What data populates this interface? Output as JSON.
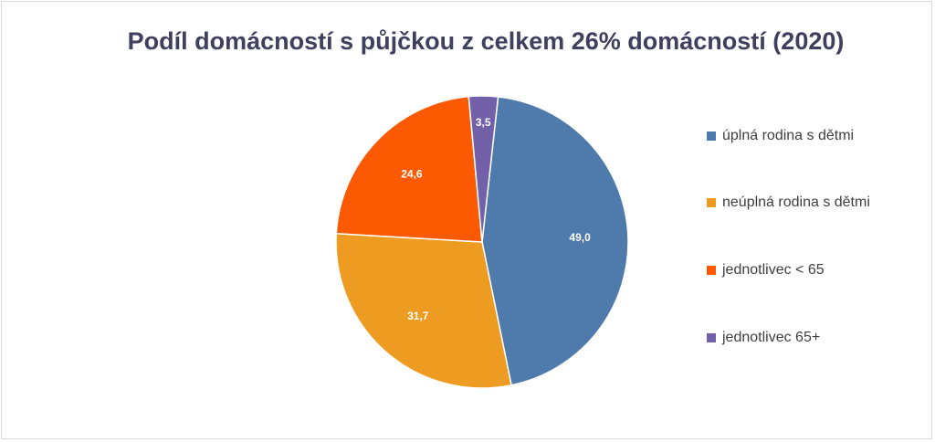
{
  "chart_data": {
    "type": "pie",
    "title": "Podíl domácností s půjčkou z celkem 26% domácností (2020)",
    "legend_position": "right",
    "slices": [
      {
        "name": "úplná rodina s dětmi",
        "value": 49.0,
        "label": "49,0",
        "color": "#4e7bab"
      },
      {
        "name": "neúplná rodina s dětmi",
        "value": 31.7,
        "label": "31,7",
        "color": "#ee9b22"
      },
      {
        "name": "jednotlivec < 65",
        "value": 24.6,
        "label": "24,6",
        "color": "#fb5a03"
      },
      {
        "name": "jednotlivec 65+",
        "value": 3.5,
        "label": "3,5",
        "color": "#7261a8"
      }
    ]
  }
}
